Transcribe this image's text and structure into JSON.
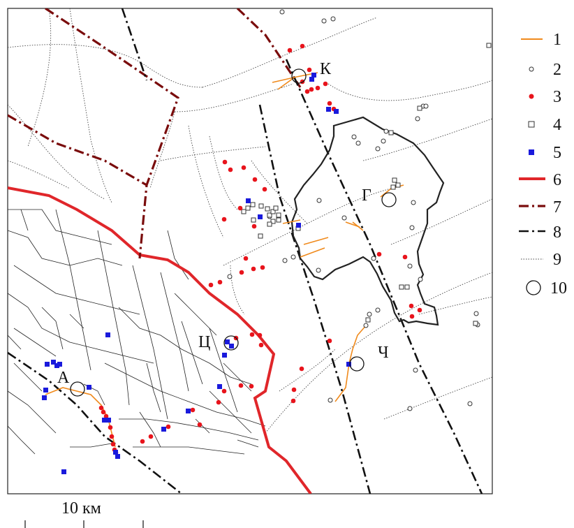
{
  "map": {
    "places": [
      {
        "id": "K",
        "name": "К"
      },
      {
        "id": "G",
        "name": "Г"
      },
      {
        "id": "C",
        "name": "Ц"
      },
      {
        "id": "A",
        "name": "А"
      },
      {
        "id": "CH",
        "name": "Ч"
      }
    ],
    "scale_bar": {
      "label": "10 км"
    }
  },
  "legend": {
    "items": [
      {
        "num": "1",
        "symbol": "orange-line",
        "color": "#f08a1c"
      },
      {
        "num": "2",
        "symbol": "small-open-circle",
        "color": "#333333"
      },
      {
        "num": "3",
        "symbol": "red-dot",
        "color": "#e8141c"
      },
      {
        "num": "4",
        "symbol": "open-square",
        "color": "#333333"
      },
      {
        "num": "5",
        "symbol": "blue-square",
        "color": "#1a1adc"
      },
      {
        "num": "6",
        "symbol": "thick-red-line",
        "color": "#e0262a"
      },
      {
        "num": "7",
        "symbol": "dark-red-dash-dot-line",
        "color": "#7a0c0c"
      },
      {
        "num": "8",
        "symbol": "black-dash-dot-line",
        "color": "#111111"
      },
      {
        "num": "9",
        "symbol": "dotted-line",
        "color": "#333333"
      },
      {
        "num": "10",
        "symbol": "large-open-circle",
        "color": "#111111"
      }
    ]
  }
}
